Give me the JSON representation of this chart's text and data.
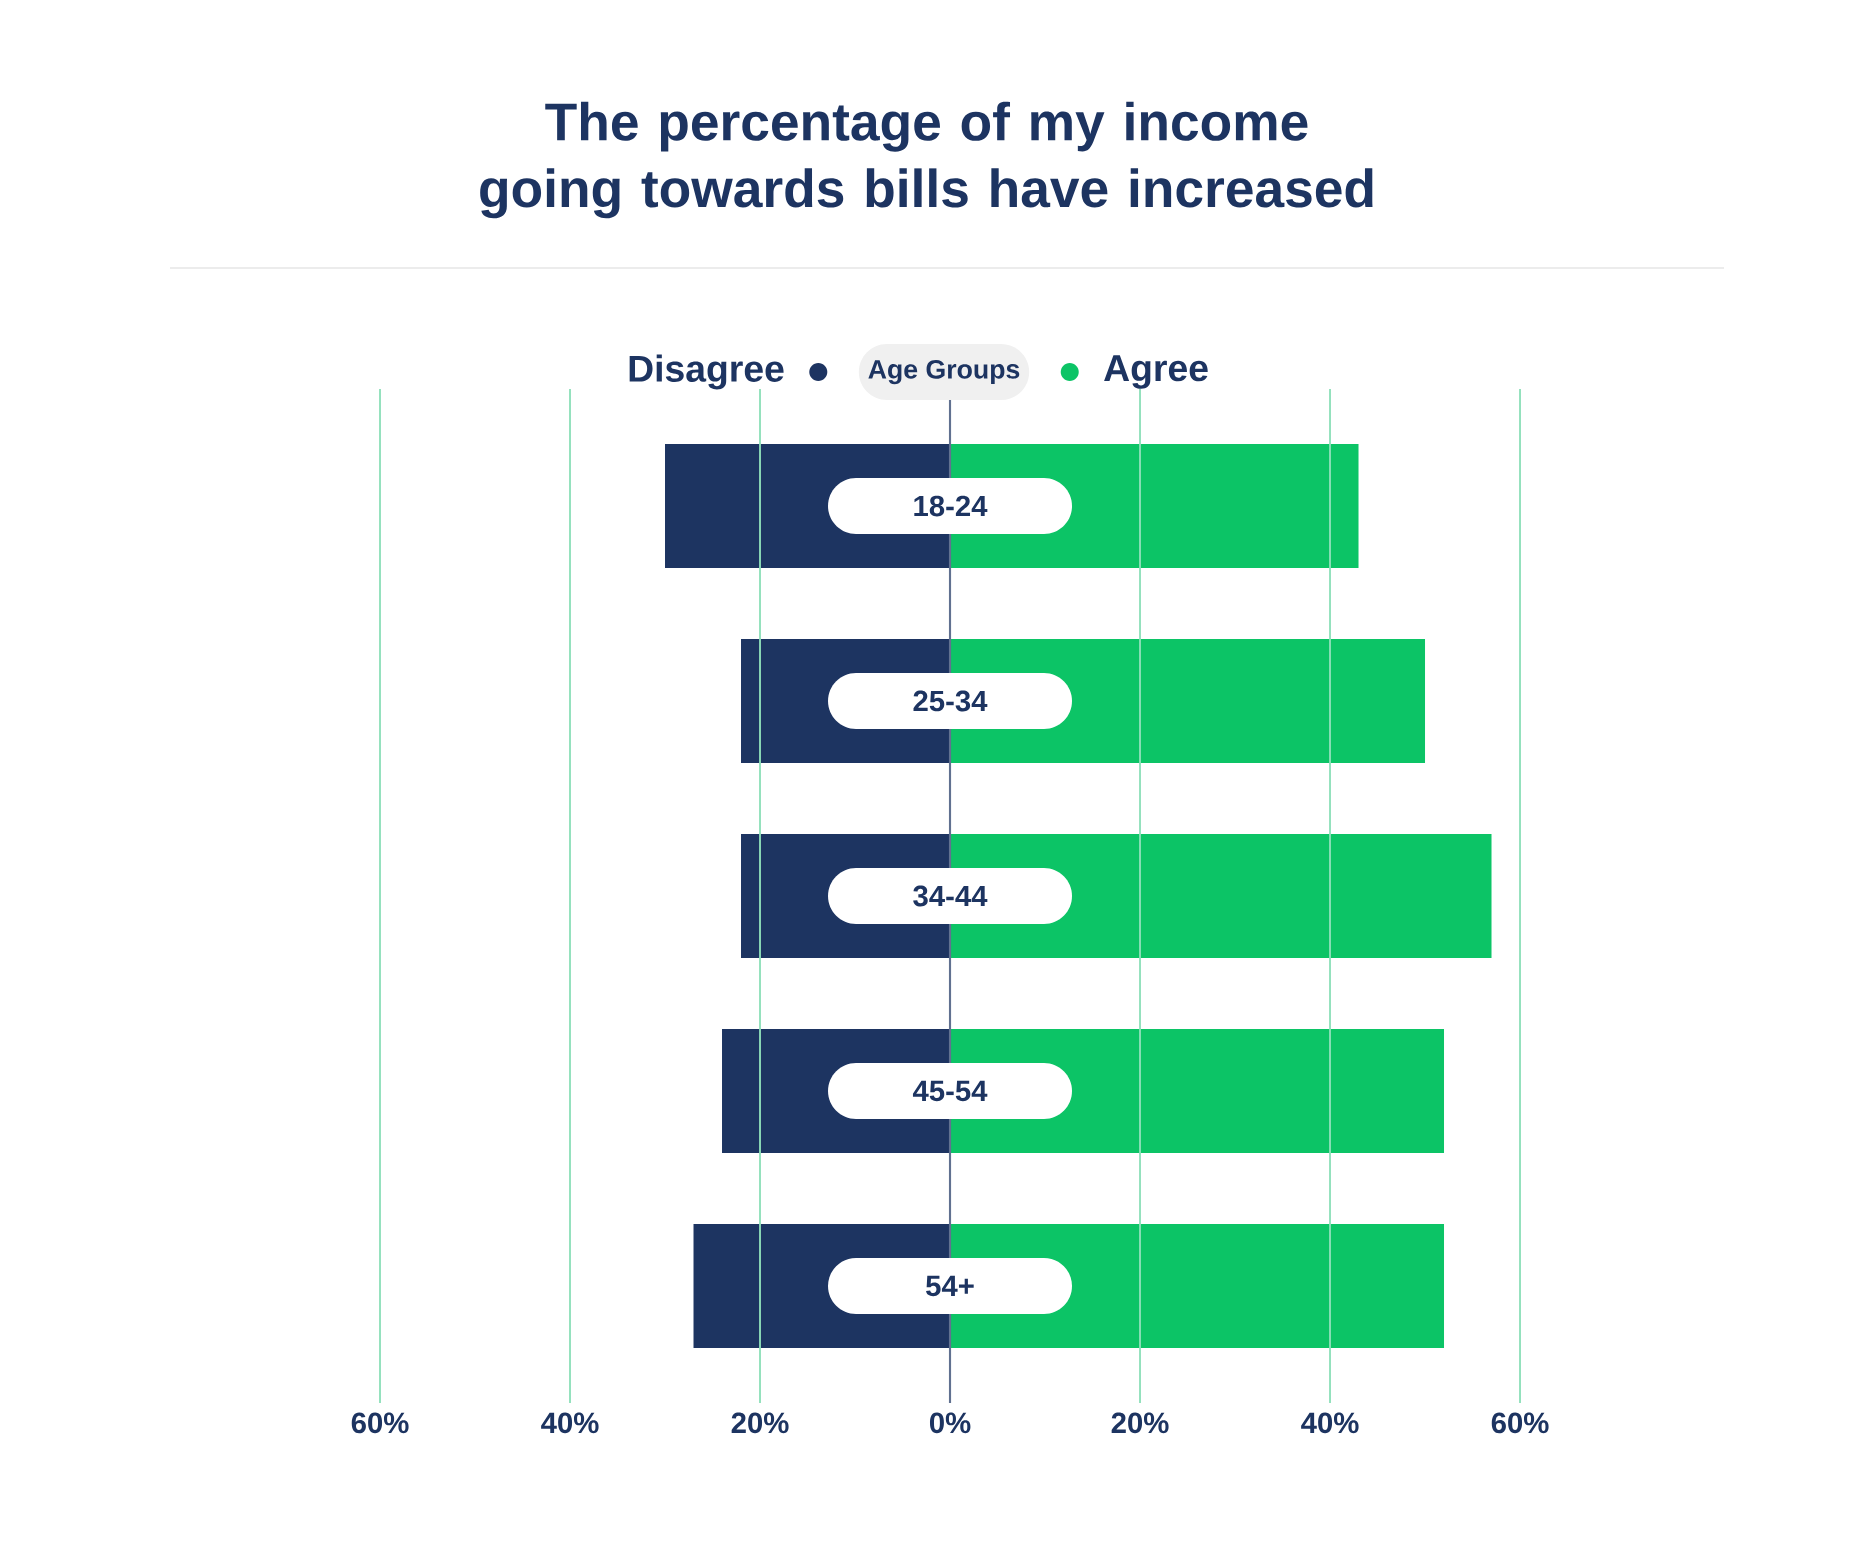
{
  "chart_data": {
    "type": "bar",
    "orientation": "horizontal",
    "title": "The percentage of my income going towards bills have increased",
    "legend_title": "Age Groups",
    "categories": [
      "18-24",
      "25-34",
      "34-44",
      "45-54",
      "54+"
    ],
    "series": [
      {
        "name": "Disagree",
        "color": "#1d3461",
        "values": [
          -30,
          -22,
          -22,
          -24,
          -27
        ]
      },
      {
        "name": "Agree",
        "color": "#0cc466",
        "values": [
          43,
          50,
          57,
          52,
          52
        ]
      }
    ],
    "xlim": [
      -60,
      60
    ],
    "xticks": [
      {
        "value": -60,
        "label": "60%"
      },
      {
        "value": -40,
        "label": "40%"
      },
      {
        "value": -20,
        "label": "20%"
      },
      {
        "value": 0,
        "label": "0%"
      },
      {
        "value": 20,
        "label": "20%"
      },
      {
        "value": 40,
        "label": "40%"
      },
      {
        "value": 60,
        "label": "60%"
      }
    ],
    "grid": "x",
    "legend": "top",
    "stacked": true
  }
}
